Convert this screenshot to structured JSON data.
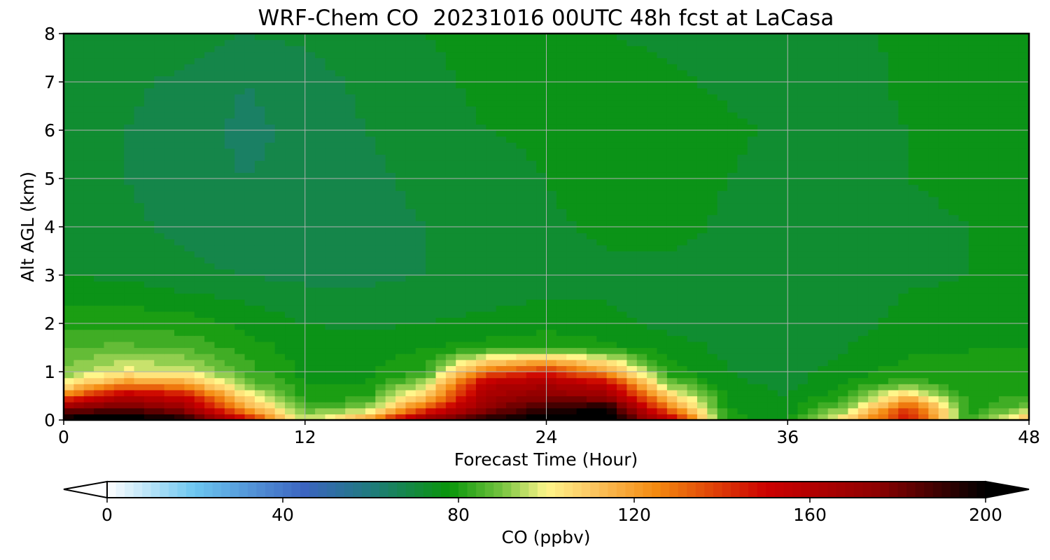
{
  "chart_data": {
    "type": "heatmap",
    "title": "WRF-Chem CO  20231016 00UTC 48h fcst at LaCasa",
    "xlabel": "Forecast Time (Hour)",
    "ylabel": "Alt AGL (km)",
    "xlim": [
      0,
      48
    ],
    "ylim": [
      0,
      8
    ],
    "xticks": [
      0,
      12,
      24,
      36,
      48
    ],
    "yticks": [
      0,
      1,
      2,
      3,
      4,
      5,
      6,
      7,
      8
    ],
    "grid": true,
    "x": [
      0,
      3,
      6,
      9,
      12,
      15,
      18,
      21,
      24,
      27,
      30,
      33,
      36,
      39,
      42,
      45,
      48
    ],
    "y": [
      0,
      0.25,
      0.5,
      0.75,
      1.0,
      1.5,
      2.0,
      3.0,
      4.0,
      5.0,
      6.0,
      7.0,
      8.0
    ],
    "z": [
      [
        205,
        205,
        200,
        150,
        95,
        120,
        175,
        195,
        205,
        205,
        160,
        80,
        76,
        110,
        150,
        80,
        115
      ],
      [
        175,
        185,
        170,
        120,
        85,
        90,
        135,
        175,
        190,
        200,
        130,
        78,
        75,
        90,
        140,
        80,
        90
      ],
      [
        130,
        160,
        150,
        105,
        80,
        80,
        110,
        165,
        175,
        170,
        110,
        76,
        74,
        82,
        110,
        79,
        82
      ],
      [
        100,
        125,
        120,
        90,
        78,
        78,
        95,
        160,
        165,
        155,
        90,
        75,
        73,
        78,
        86,
        78,
        80
      ],
      [
        90,
        100,
        98,
        84,
        77,
        77,
        82,
        130,
        145,
        120,
        80,
        74,
        72,
        76,
        80,
        78,
        79
      ],
      [
        86,
        87,
        85,
        80,
        76,
        76,
        78,
        80,
        82,
        79,
        76,
        73,
        71,
        74,
        77,
        78,
        78
      ],
      [
        80,
        81,
        80,
        77,
        74,
        73,
        74,
        75,
        76,
        75,
        73,
        72,
        70,
        72,
        76,
        77,
        77
      ],
      [
        74,
        73,
        71,
        70,
        69,
        69,
        70,
        71,
        72,
        73,
        72,
        70,
        70,
        71,
        73,
        74,
        75
      ],
      [
        72,
        71,
        69,
        67,
        68,
        69,
        70,
        71,
        73,
        75,
        76,
        73,
        71,
        71,
        73,
        74,
        74
      ],
      [
        72,
        70,
        68,
        66,
        67,
        69,
        71,
        72,
        74,
        77,
        78,
        74,
        72,
        72,
        74,
        75,
        75
      ],
      [
        72,
        70,
        68,
        65,
        67,
        70,
        72,
        74,
        75,
        77,
        77,
        75,
        73,
        72,
        74,
        77,
        76
      ],
      [
        73,
        71,
        69,
        66,
        68,
        71,
        73,
        75,
        76,
        76,
        75,
        73,
        71,
        72,
        75,
        76,
        75
      ],
      [
        74,
        73,
        72,
        70,
        71,
        73,
        74,
        75,
        75,
        74,
        73,
        72,
        71,
        73,
        75,
        75,
        74
      ]
    ],
    "colorbar": {
      "label": "CO  (ppbv)",
      "min": 0,
      "max": 200,
      "ticks": [
        0,
        40,
        80,
        120,
        160,
        200
      ],
      "extend": "both",
      "orientation": "horizontal",
      "location": "bottom"
    },
    "colormap": [
      {
        "v": 0,
        "c": "#ffffff"
      },
      {
        "v": 20,
        "c": "#6cc6f0"
      },
      {
        "v": 45,
        "c": "#3b64c0"
      },
      {
        "v": 60,
        "c": "#1f7a7e"
      },
      {
        "v": 78,
        "c": "#09960a"
      },
      {
        "v": 90,
        "c": "#76c440"
      },
      {
        "v": 100,
        "c": "#fff68a"
      },
      {
        "v": 110,
        "c": "#fcc864"
      },
      {
        "v": 125,
        "c": "#f48a10"
      },
      {
        "v": 150,
        "c": "#cc0000"
      },
      {
        "v": 175,
        "c": "#8e0000"
      },
      {
        "v": 200,
        "c": "#000000"
      }
    ]
  }
}
